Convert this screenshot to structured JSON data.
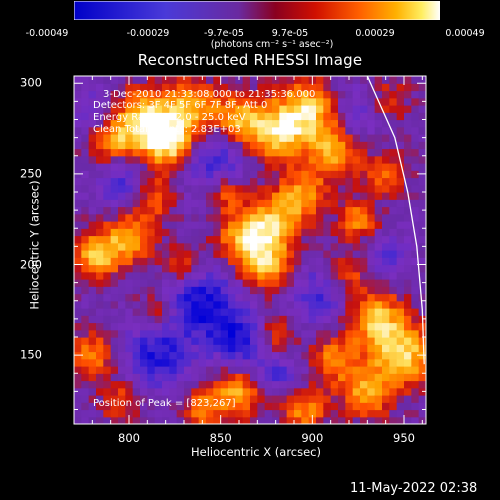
{
  "colorbar": {
    "ticks": [
      "-0.00049",
      "-0.00029",
      "-9.7e-05",
      "9.7e-05",
      "0.00029",
      "0.00049"
    ],
    "units": "(photons cm⁻² s⁻¹ asec⁻²)"
  },
  "title": "Reconstructed RHESSI Image",
  "info": {
    "time": "3-Dec-2010 21:33:08.000 to 21:35:36.000",
    "detectors": "Detectors: 3F 4F 5F 6F 7F 8F, Att 0",
    "energy": "Energy Range: 12.0 - 25.0 keV",
    "clean": "Clean     Total counts: 2.83E+03",
    "peak": "Position of Peak = [823,267]"
  },
  "footer_date": "11-May-2022 02:38",
  "chart_data": {
    "type": "heatmap",
    "title": "Reconstructed RHESSI Image",
    "xlabel": "Heliocentric X (arcsec)",
    "ylabel": "Heliocentric Y (arcsec)",
    "xlim": [
      770,
      962
    ],
    "ylim": [
      112,
      304
    ],
    "xticks": [
      800,
      850,
      900,
      950
    ],
    "yticks": [
      150,
      200,
      250,
      300
    ],
    "colorbar_range": [
      -0.00049,
      0.00049
    ],
    "peak_position": [
      823,
      267
    ],
    "colormap_stops": [
      "#0000d8",
      "#4a2ad0",
      "#7a2ec0",
      "#6a2aa8",
      "#c41010",
      "#ff5000",
      "#ffa000",
      "#ffe060",
      "#ffffff"
    ],
    "blobs": [
      {
        "x": 823,
        "y": 267,
        "v": 1.0,
        "r": 11
      },
      {
        "x": 808,
        "y": 280,
        "v": 0.85,
        "r": 12
      },
      {
        "x": 790,
        "y": 268,
        "v": 0.6,
        "r": 9
      },
      {
        "x": 835,
        "y": 288,
        "v": 0.7,
        "r": 10
      },
      {
        "x": 860,
        "y": 280,
        "v": 0.75,
        "r": 10
      },
      {
        "x": 880,
        "y": 272,
        "v": 0.8,
        "r": 11
      },
      {
        "x": 898,
        "y": 285,
        "v": 0.85,
        "r": 12
      },
      {
        "x": 912,
        "y": 262,
        "v": 0.7,
        "r": 10
      },
      {
        "x": 895,
        "y": 240,
        "v": 0.6,
        "r": 9
      },
      {
        "x": 880,
        "y": 225,
        "v": 0.75,
        "r": 11
      },
      {
        "x": 862,
        "y": 215,
        "v": 0.7,
        "r": 10
      },
      {
        "x": 875,
        "y": 200,
        "v": 0.8,
        "r": 10
      },
      {
        "x": 852,
        "y": 240,
        "v": 0.55,
        "r": 8
      },
      {
        "x": 812,
        "y": 238,
        "v": 0.65,
        "r": 9
      },
      {
        "x": 800,
        "y": 215,
        "v": 0.7,
        "r": 10
      },
      {
        "x": 782,
        "y": 205,
        "v": 0.75,
        "r": 9
      },
      {
        "x": 830,
        "y": 200,
        "v": 0.55,
        "r": 8
      },
      {
        "x": 925,
        "y": 225,
        "v": 0.6,
        "r": 8
      },
      {
        "x": 940,
        "y": 250,
        "v": 0.55,
        "r": 8
      },
      {
        "x": 918,
        "y": 195,
        "v": 0.55,
        "r": 9
      },
      {
        "x": 935,
        "y": 170,
        "v": 0.8,
        "r": 11
      },
      {
        "x": 950,
        "y": 150,
        "v": 0.85,
        "r": 12
      },
      {
        "x": 912,
        "y": 148,
        "v": 0.6,
        "r": 9
      },
      {
        "x": 930,
        "y": 130,
        "v": 0.7,
        "r": 10
      },
      {
        "x": 895,
        "y": 120,
        "v": 0.65,
        "r": 9
      },
      {
        "x": 860,
        "y": 130,
        "v": 0.75,
        "r": 10
      },
      {
        "x": 840,
        "y": 120,
        "v": 0.55,
        "r": 8
      },
      {
        "x": 880,
        "y": 160,
        "v": 0.5,
        "r": 8
      },
      {
        "x": 780,
        "y": 150,
        "v": 0.6,
        "r": 9
      },
      {
        "x": 795,
        "y": 125,
        "v": 0.45,
        "r": 8
      },
      {
        "x": 815,
        "y": 175,
        "v": 0.45,
        "r": 7
      },
      {
        "x": 940,
        "y": 290,
        "v": 0.4,
        "r": 9
      },
      {
        "x": 845,
        "y": 258,
        "v": -0.6,
        "r": 14
      },
      {
        "x": 840,
        "y": 180,
        "v": -0.7,
        "r": 14
      },
      {
        "x": 800,
        "y": 245,
        "v": -0.55,
        "r": 11
      },
      {
        "x": 815,
        "y": 150,
        "v": -0.6,
        "r": 13
      },
      {
        "x": 880,
        "y": 140,
        "v": -0.45,
        "r": 10
      },
      {
        "x": 905,
        "y": 185,
        "v": -0.5,
        "r": 12
      },
      {
        "x": 925,
        "y": 285,
        "v": -0.45,
        "r": 10
      },
      {
        "x": 860,
        "y": 158,
        "v": -0.6,
        "r": 11
      },
      {
        "x": 780,
        "y": 285,
        "v": -0.35,
        "r": 9
      },
      {
        "x": 940,
        "y": 205,
        "v": -0.4,
        "r": 9
      }
    ],
    "limb_arc": [
      [
        930,
        304
      ],
      [
        945,
        270
      ],
      [
        952,
        240
      ],
      [
        957,
        210
      ],
      [
        960,
        175
      ],
      [
        961,
        145
      ]
    ]
  }
}
